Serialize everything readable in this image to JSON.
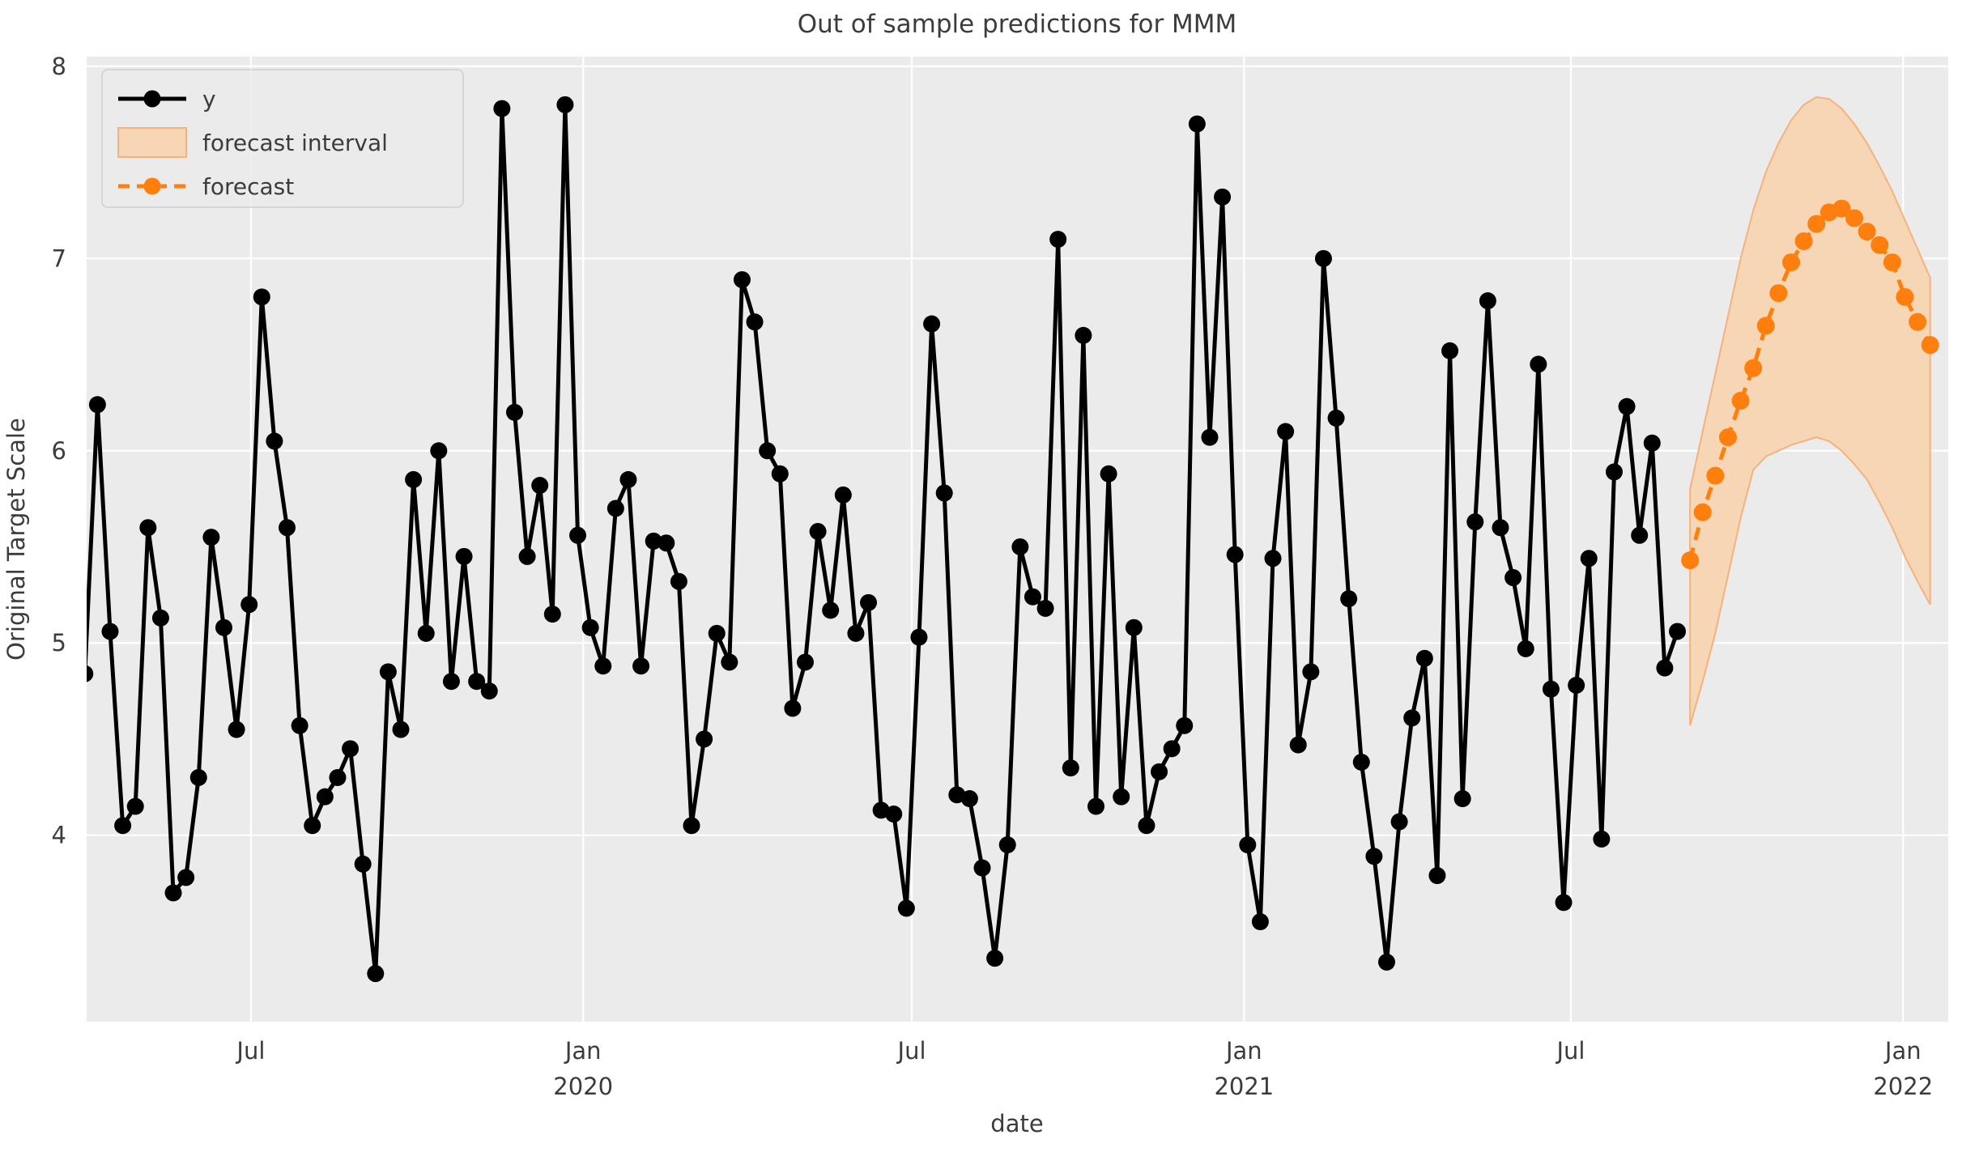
{
  "title": "Out of sample predictions for MMM",
  "xlabel": "date",
  "ylabel": "Original Target Scale",
  "legend": {
    "y_label": "y",
    "interval_label": "forecast interval",
    "forecast_label": "forecast"
  },
  "colors": {
    "figure_bg": "#ffffff",
    "plot_bg": "#ebebeb",
    "grid": "#ffffff",
    "series_y": "#000000",
    "forecast": "#ff7f0e",
    "interval_fill": "#f6d6b4",
    "interval_edge": "#f3b27e",
    "text": "#3c3c3c"
  },
  "chart_data": {
    "type": "line",
    "title": "Out of sample predictions for MMM",
    "xlabel": "date",
    "ylabel": "Original Target Scale",
    "grid": true,
    "legend_position": "upper-left",
    "x_axis": {
      "range": [
        "2019-04-01",
        "2022-01-26"
      ],
      "ticks": [
        {
          "label": "Jul",
          "sublabel": "",
          "date": "2019-07-01"
        },
        {
          "label": "Jan",
          "sublabel": "2020",
          "date": "2020-01-01"
        },
        {
          "label": "Jul",
          "sublabel": "",
          "date": "2020-07-01"
        },
        {
          "label": "Jan",
          "sublabel": "2021",
          "date": "2021-01-01"
        },
        {
          "label": "Jul",
          "sublabel": "",
          "date": "2021-07-01"
        },
        {
          "label": "Jan",
          "sublabel": "2022",
          "date": "2022-01-01"
        }
      ]
    },
    "y_axis": {
      "range": [
        3.03,
        8.05
      ],
      "ticks": [
        8,
        7,
        6,
        5,
        4
      ]
    },
    "series": [
      {
        "name": "y",
        "style": "solid-line-markers",
        "color": "#000000",
        "start": "2019-03-31",
        "freq_days": 7,
        "values": [
          4.84,
          6.24,
          5.06,
          4.05,
          4.15,
          5.6,
          5.13,
          3.7,
          3.78,
          4.3,
          5.55,
          5.08,
          4.55,
          5.2,
          6.8,
          6.05,
          5.6,
          4.57,
          4.05,
          4.2,
          4.3,
          4.45,
          3.85,
          3.28,
          4.85,
          4.55,
          5.85,
          5.05,
          6.0,
          4.8,
          5.45,
          4.8,
          4.75,
          7.78,
          6.2,
          5.45,
          5.82,
          5.15,
          7.8,
          5.56,
          5.08,
          4.88,
          5.7,
          5.85,
          4.88,
          5.53,
          5.52,
          5.32,
          4.05,
          4.5,
          5.05,
          4.9,
          6.89,
          6.67,
          6.0,
          5.88,
          4.66,
          4.9,
          5.58,
          5.17,
          5.77,
          5.05,
          5.21,
          4.13,
          4.11,
          3.62,
          5.03,
          6.66,
          5.78,
          4.21,
          4.19,
          3.83,
          3.36,
          3.95,
          5.5,
          5.24,
          5.18,
          7.1,
          4.35,
          6.6,
          4.15,
          5.88,
          4.2,
          5.08,
          4.05,
          4.33,
          4.45,
          4.57,
          7.7,
          6.07,
          7.32,
          5.46,
          3.95,
          3.55,
          5.44,
          6.1,
          4.47,
          4.85,
          7.0,
          6.17,
          5.23,
          4.38,
          3.89,
          3.34,
          4.07,
          4.61,
          4.92,
          3.79,
          6.52,
          4.19,
          5.63,
          6.78,
          5.6,
          5.34,
          4.97,
          6.45,
          4.76,
          3.65,
          4.78,
          5.44,
          3.98,
          5.89,
          6.23,
          5.56,
          6.04,
          4.87,
          5.06
        ]
      },
      {
        "name": "forecast",
        "style": "dashed-line-markers",
        "color": "#ff7f0e",
        "start": "2021-09-05",
        "freq_days": 7,
        "values": [
          5.43,
          5.68,
          5.87,
          6.07,
          6.26,
          6.43,
          6.65,
          6.82,
          6.98,
          7.09,
          7.18,
          7.24,
          7.26,
          7.21,
          7.14,
          7.07,
          6.98,
          6.8,
          6.67,
          6.55
        ]
      },
      {
        "name": "forecast interval",
        "style": "band",
        "color": "#ff7f0e",
        "start": "2021-09-05",
        "freq_days": 7,
        "lower": [
          4.57,
          4.8,
          5.05,
          5.35,
          5.65,
          5.9,
          5.97,
          6.0,
          6.03,
          6.05,
          6.07,
          6.05,
          6.0,
          5.93,
          5.85,
          5.73,
          5.6,
          5.45,
          5.32,
          5.2
        ],
        "upper": [
          5.8,
          6.1,
          6.4,
          6.7,
          7.0,
          7.25,
          7.45,
          7.6,
          7.72,
          7.8,
          7.84,
          7.83,
          7.78,
          7.7,
          7.6,
          7.48,
          7.35,
          7.2,
          7.05,
          6.9
        ]
      }
    ]
  }
}
